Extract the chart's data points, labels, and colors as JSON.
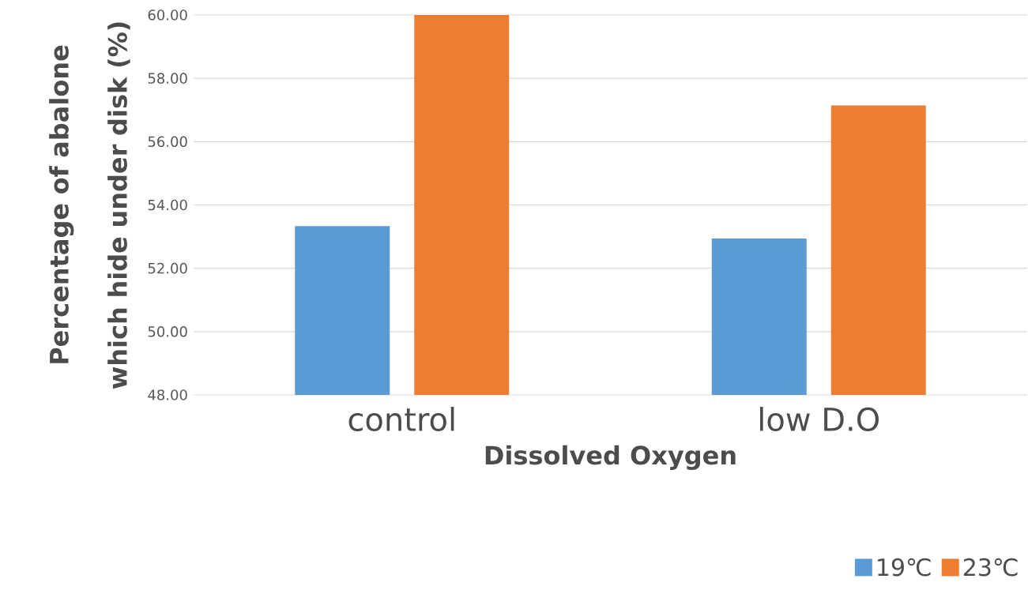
{
  "chart_data": {
    "type": "bar",
    "categories": [
      "control",
      "low D.O"
    ],
    "xlabel": "Dissolved Oxygen",
    "ylabel": "Percentage of abalone which hide under disk (%)",
    "series": [
      {
        "name": "19℃",
        "color": "#5b9bd5",
        "values": [
          53.33,
          52.94
        ]
      },
      {
        "name": "23℃",
        "color": "#ed7d31",
        "values": [
          60.0,
          57.14
        ]
      }
    ],
    "ylim": [
      48,
      60
    ],
    "yticks": [
      {
        "value": 48,
        "label": "48.00"
      },
      {
        "value": 50,
        "label": "50.00"
      },
      {
        "value": 52,
        "label": "52.00"
      },
      {
        "value": 54,
        "label": "54.00"
      },
      {
        "value": 56,
        "label": "56.00"
      },
      {
        "value": 58,
        "label": "58.00"
      },
      {
        "value": 60,
        "label": "60.00"
      }
    ],
    "grid": "y",
    "legend": "bottom right"
  }
}
